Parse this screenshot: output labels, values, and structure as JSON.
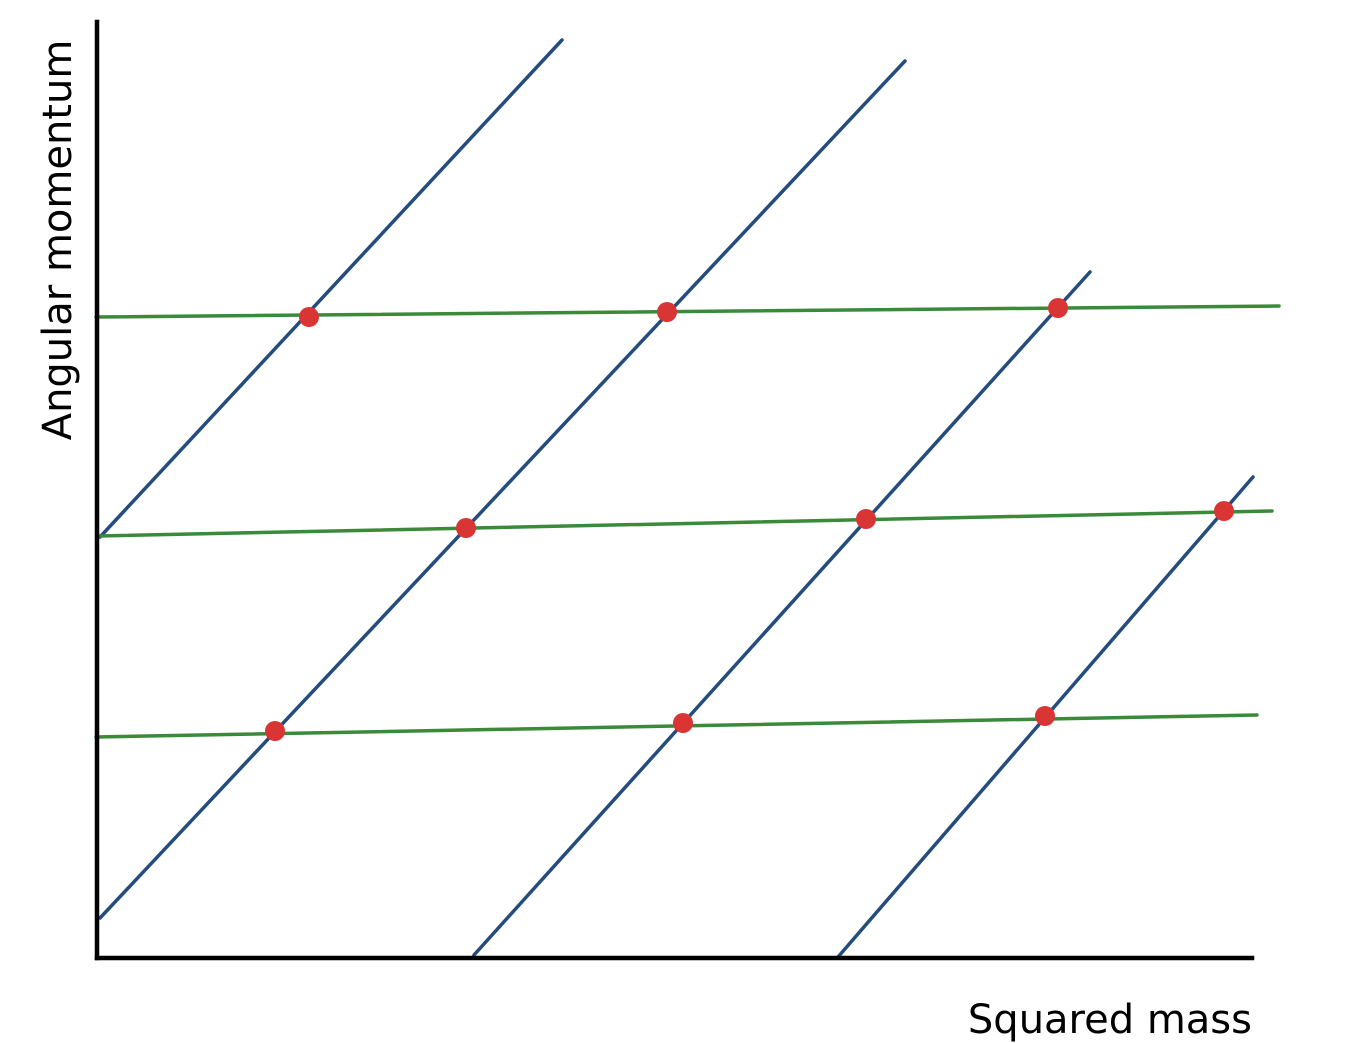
{
  "diagram": {
    "xlabel": "Squared mass",
    "ylabel": "Angular momentum",
    "colors": {
      "axis": "#000000",
      "trajectory": "#244c7c",
      "level": "#3a8a3a",
      "state": "#d93535"
    },
    "trajectory_count": 4,
    "level_count": 3,
    "state_count": 9
  }
}
